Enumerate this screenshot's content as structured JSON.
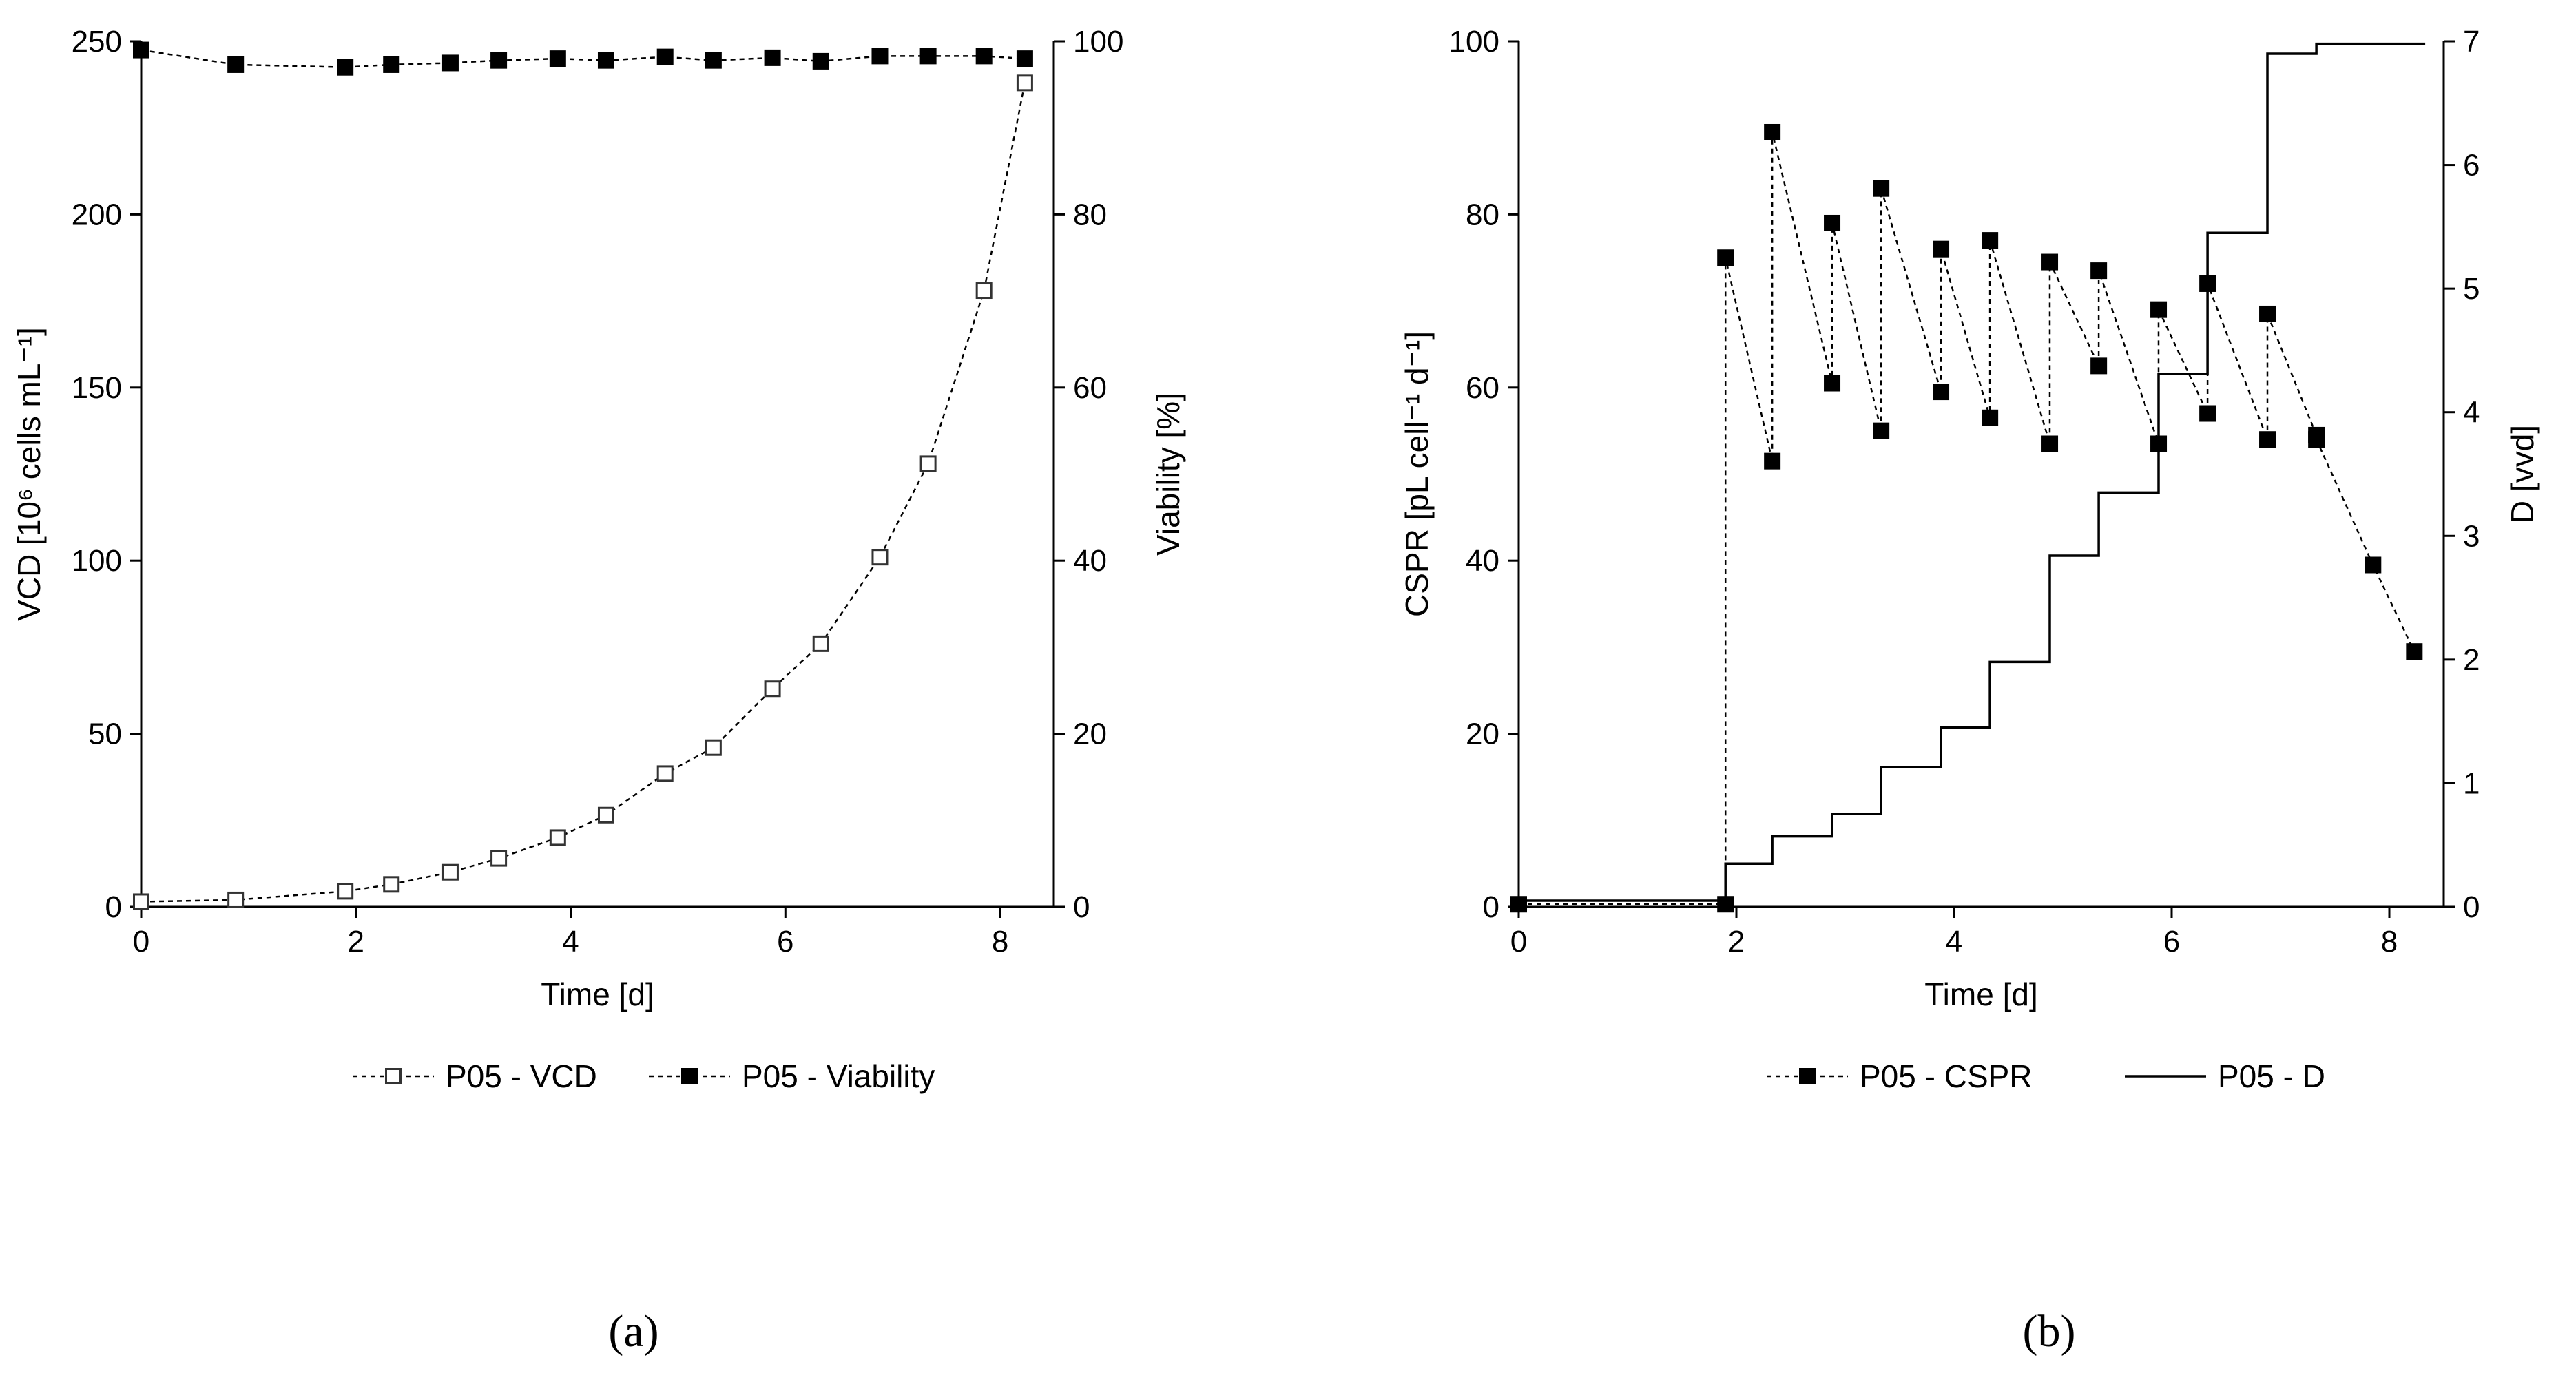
{
  "chart_data": [
    {
      "id": "a",
      "type": "line",
      "panel_label": "(a)",
      "xlabel": "Time [d]",
      "ylabel_left": "VCD [10⁶ cells mL⁻¹]",
      "ylabel_right": "Viability [%]",
      "xlim": [
        0,
        8.5
      ],
      "xticks": [
        "0",
        "2",
        "4",
        "6",
        "8"
      ],
      "ylim_left": [
        0,
        250
      ],
      "yticks_left": [
        "0",
        "50",
        "100",
        "150",
        "200",
        "250"
      ],
      "ylim_right": [
        0,
        100
      ],
      "yticks_right": [
        "0",
        "20",
        "40",
        "60",
        "80",
        "100"
      ],
      "series": [
        {
          "name": "P05 - VCD",
          "axis": "left",
          "marker": "open-square",
          "line": "dashed",
          "x": [
            0,
            0.88,
            1.9,
            2.33,
            2.88,
            3.33,
            3.88,
            4.33,
            4.88,
            5.33,
            5.88,
            6.33,
            6.88,
            7.33,
            7.85,
            8.23
          ],
          "y": [
            1.5,
            2,
            4.5,
            6.5,
            10,
            14,
            20,
            26.5,
            38.5,
            46,
            63,
            76,
            101,
            128,
            178,
            238
          ]
        },
        {
          "name": "P05 - Viability",
          "axis": "right",
          "marker": "filled-square",
          "line": "dashed",
          "x": [
            0,
            0.88,
            1.9,
            2.33,
            2.88,
            3.33,
            3.88,
            4.33,
            4.88,
            5.33,
            5.88,
            6.33,
            6.88,
            7.33,
            7.85,
            8.23
          ],
          "y": [
            99,
            97.3,
            97,
            97.3,
            97.5,
            97.8,
            98,
            97.8,
            98.2,
            97.8,
            98.1,
            97.7,
            98.3,
            98.3,
            98.3,
            98
          ]
        }
      ],
      "legend": [
        "P05 - VCD",
        "P05 - Viability"
      ]
    },
    {
      "id": "b",
      "type": "line",
      "panel_label": "(b)",
      "xlabel": "Time [d]",
      "ylabel_left": "CSPR [pL cell⁻¹ d⁻¹]",
      "ylabel_right": "D [vvd]",
      "xlim": [
        0,
        8.5
      ],
      "xticks": [
        "0",
        "2",
        "4",
        "6",
        "8"
      ],
      "ylim_left": [
        0,
        100
      ],
      "yticks_left": [
        "0",
        "20",
        "40",
        "60",
        "80",
        "100"
      ],
      "ylim_right": [
        0,
        7
      ],
      "yticks_right": [
        "0",
        "1",
        "2",
        "3",
        "4",
        "5",
        "6",
        "7"
      ],
      "series": [
        {
          "name": "P05 - CSPR",
          "axis": "left",
          "marker": "filled-square",
          "line": "dashed",
          "x": [
            0,
            1.9,
            1.9,
            2.33,
            2.33,
            2.88,
            2.88,
            3.33,
            3.33,
            3.88,
            3.88,
            4.33,
            4.33,
            4.88,
            4.88,
            5.33,
            5.33,
            5.88,
            5.88,
            6.33,
            6.33,
            6.88,
            6.88,
            7.33,
            7.33,
            7.85,
            8.23
          ],
          "y": [
            0.3,
            0.3,
            75,
            51.5,
            89.5,
            60.5,
            79,
            55,
            83,
            59.5,
            76,
            56.5,
            77,
            53.5,
            74.5,
            62.5,
            73.5,
            53.5,
            69,
            57,
            72,
            54,
            68.5,
            54.5,
            54,
            39.5,
            29.5
          ]
        },
        {
          "name": "P05 - D",
          "axis": "right",
          "marker": "none",
          "line": "solid-step",
          "x": [
            0,
            1.9,
            1.9,
            2.33,
            2.33,
            2.88,
            2.88,
            3.33,
            3.33,
            3.88,
            3.88,
            4.33,
            4.33,
            4.88,
            4.88,
            5.33,
            5.33,
            5.88,
            5.88,
            6.33,
            6.33,
            6.88,
            6.88,
            7.33,
            7.33,
            8.33
          ],
          "y": [
            0.05,
            0.05,
            0.35,
            0.35,
            0.57,
            0.57,
            0.75,
            0.75,
            1.13,
            1.13,
            1.45,
            1.45,
            1.98,
            1.98,
            2.84,
            2.84,
            3.35,
            3.35,
            4.31,
            4.31,
            5.45,
            5.45,
            6.9,
            6.9,
            6.98,
            6.98
          ]
        }
      ],
      "legend": [
        "P05 - CSPR",
        "P05 - D"
      ]
    }
  ]
}
